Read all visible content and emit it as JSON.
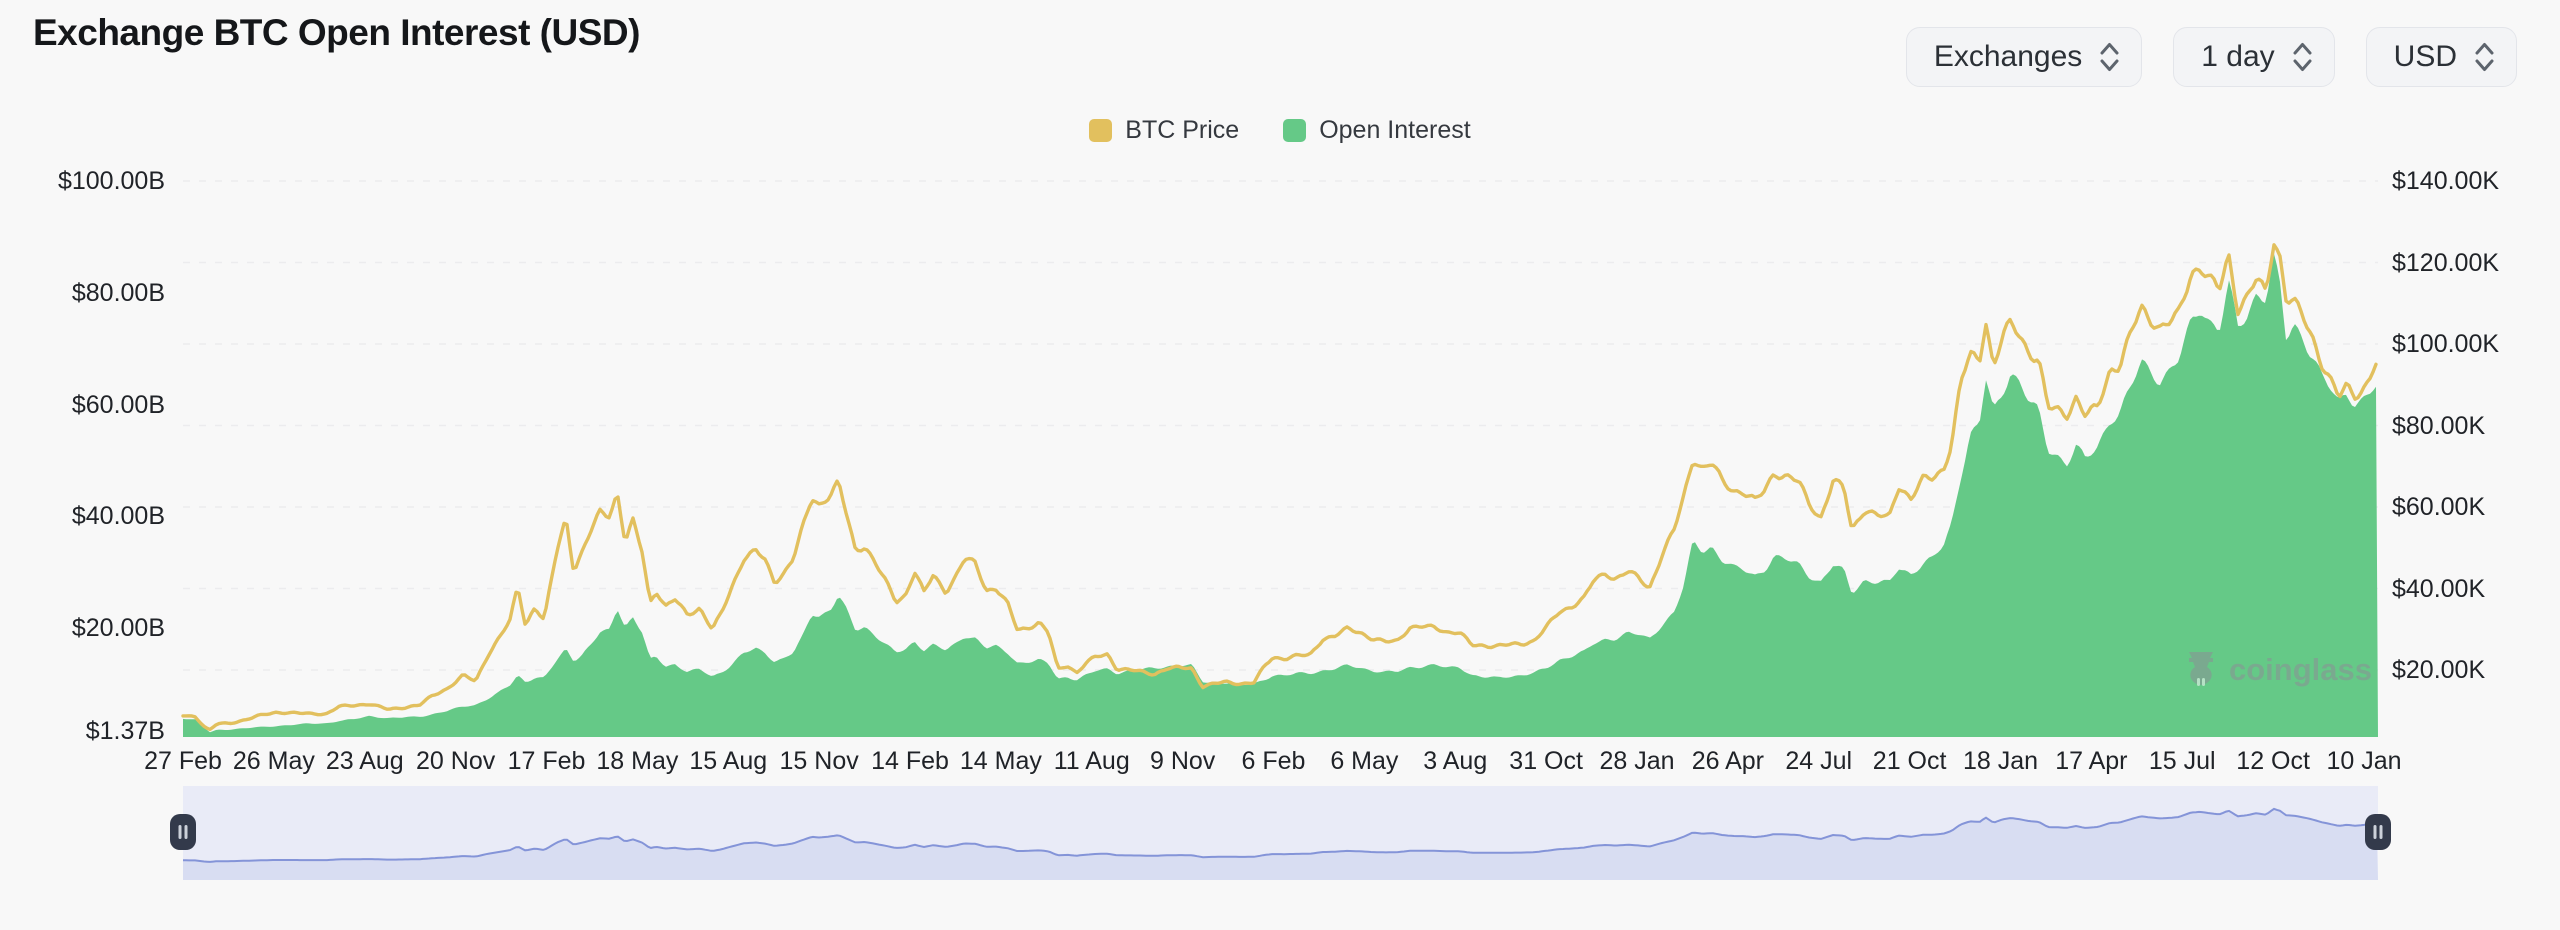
{
  "title": "Exchange BTC Open Interest (USD)",
  "controls": {
    "exchanges": "Exchanges",
    "interval": "1 day",
    "currency": "USD"
  },
  "legend": {
    "items": [
      {
        "label": "BTC Price",
        "color": "#e2c05e"
      },
      {
        "label": "Open Interest",
        "color": "#65c987"
      }
    ]
  },
  "watermark": "coinglass",
  "navigator": {
    "bg_color": "#e9ebf7",
    "fill_color": "#d8ddf2",
    "line_color": "#8494d8",
    "handle_color": "#333a4b",
    "handle_bar_color": "#ccd1da"
  },
  "chart_data": {
    "type": "area",
    "title": "Exchange BTC Open Interest (USD)",
    "legend_position": "top-center",
    "grid": "horizontal-dashed",
    "x_tick_labels": [
      "27 Feb",
      "26 May",
      "23 Aug",
      "20 Nov",
      "17 Feb",
      "18 May",
      "15 Aug",
      "15 Nov",
      "14 Feb",
      "14 May",
      "11 Aug",
      "9 Nov",
      "6 Feb",
      "6 May",
      "3 Aug",
      "31 Oct",
      "28 Jan",
      "26 Apr",
      "24 Jul",
      "21 Oct",
      "18 Jan",
      "17 Apr",
      "15 Jul",
      "12 Oct",
      "10 Jan"
    ],
    "x_unit": "months from first visible date (27 Feb, ~6-year daily range)",
    "x_span_months": 70.5,
    "y_axis_left": {
      "name": "Open Interest (USD)",
      "tick_labels": [
        "$100.00B",
        "$80.00B",
        "$60.00B",
        "$40.00B",
        "$20.00B"
      ],
      "tick_values_billions": [
        100,
        80,
        60,
        40,
        20
      ],
      "min_label": "$1.37B",
      "min_billions": 1.37,
      "approx_max_billions": 103
    },
    "y_axis_right": {
      "name": "BTC Price (USD)",
      "tick_labels": [
        "$140.00K",
        "$120.00K",
        "$100.00K",
        "$80.00K",
        "$60.00K",
        "$40.00K",
        "$20.00K"
      ],
      "tick_values_thousands": [
        140,
        120,
        100,
        80,
        60,
        40,
        20
      ],
      "approx_range_thousands": [
        4,
        144
      ]
    },
    "series": [
      {
        "name": "BTC Price",
        "type": "line",
        "axis": "right",
        "color": "#e2c05e",
        "unit": "USD thousands"
      },
      {
        "name": "Open Interest",
        "type": "area",
        "axis": "left",
        "color": "#65c987",
        "unit": "USD billions"
      }
    ],
    "points_format": "[months_from_start, btc_price_thousands_usd, open_interest_billions_usd]",
    "points": [
      [
        0,
        8.8,
        3.9
      ],
      [
        0.4,
        8.6,
        3.6
      ],
      [
        0.7,
        6.0,
        2.2
      ],
      [
        0.85,
        5.2,
        1.37
      ],
      [
        1.1,
        6.8,
        1.8
      ],
      [
        1.5,
        6.9,
        1.9
      ],
      [
        2,
        7.8,
        2.1
      ],
      [
        2.5,
        8.9,
        2.3
      ],
      [
        3,
        9.6,
        2.5
      ],
      [
        3.5,
        9.5,
        2.7
      ],
      [
        4,
        9.3,
        2.9
      ],
      [
        4.6,
        9.2,
        3.0
      ],
      [
        5,
        11.0,
        3.4
      ],
      [
        5.5,
        11.3,
        3.7
      ],
      [
        6,
        11.7,
        4.3
      ],
      [
        6.6,
        10.3,
        3.9
      ],
      [
        7,
        10.7,
        4.0
      ],
      [
        7.6,
        11.4,
        4.2
      ],
      [
        8,
        13.6,
        4.6
      ],
      [
        8.5,
        15.5,
        5.2
      ],
      [
        9,
        18.7,
        6.0
      ],
      [
        9.4,
        17.2,
        6.3
      ],
      [
        9.8,
        23.8,
        7.4
      ],
      [
        10.1,
        27.3,
        8.3
      ],
      [
        10.5,
        32.0,
        9.8
      ],
      [
        10.75,
        40.5,
        11.6
      ],
      [
        11,
        31.0,
        10.4
      ],
      [
        11.3,
        35.5,
        11.2
      ],
      [
        11.6,
        32.2,
        11.0
      ],
      [
        12,
        49.0,
        14.2
      ],
      [
        12.3,
        57.4,
        16.3
      ],
      [
        12.55,
        44.5,
        14.3
      ],
      [
        12.8,
        48.5,
        15.2
      ],
      [
        13.1,
        54.0,
        17.0
      ],
      [
        13.4,
        58.9,
        19.2
      ],
      [
        13.7,
        58.0,
        19.6
      ],
      [
        13.95,
        63.5,
        23.8
      ],
      [
        14.2,
        51.5,
        20.3
      ],
      [
        14.45,
        56.5,
        22.0
      ],
      [
        14.75,
        49.0,
        19.2
      ],
      [
        15,
        36.5,
        14.3
      ],
      [
        15.2,
        39.5,
        14.8
      ],
      [
        15.5,
        35.5,
        13.2
      ],
      [
        15.8,
        37.3,
        13.6
      ],
      [
        16.2,
        33.6,
        12.2
      ],
      [
        16.6,
        35.2,
        12.6
      ],
      [
        17,
        29.9,
        11.3
      ],
      [
        17.3,
        34.0,
        12.2
      ],
      [
        17.6,
        39.8,
        13.4
      ],
      [
        18,
        47.3,
        15.5
      ],
      [
        18.4,
        49.3,
        16.3
      ],
      [
        18.7,
        46.8,
        15.6
      ],
      [
        19,
        41.6,
        14.1
      ],
      [
        19.3,
        43.8,
        14.6
      ],
      [
        19.6,
        47.3,
        15.6
      ],
      [
        19.9,
        54.8,
        18.4
      ],
      [
        20.2,
        62.3,
        22.6
      ],
      [
        20.45,
        60.5,
        22.2
      ],
      [
        20.8,
        63.2,
        23.4
      ],
      [
        21.05,
        66.0,
        25.9
      ],
      [
        21.3,
        58.5,
        23.3
      ],
      [
        21.6,
        49.3,
        19.6
      ],
      [
        21.9,
        50.5,
        20.2
      ],
      [
        22.2,
        46.7,
        19.0
      ],
      [
        22.55,
        42.0,
        17.2
      ],
      [
        22.9,
        36.8,
        15.6
      ],
      [
        23.2,
        38.3,
        16.1
      ],
      [
        23.5,
        44.2,
        17.6
      ],
      [
        23.8,
        39.0,
        16.2
      ],
      [
        24.1,
        43.3,
        17.1
      ],
      [
        24.5,
        39.2,
        16.0
      ],
      [
        24.8,
        42.6,
        17.0
      ],
      [
        25.1,
        47.2,
        18.6
      ],
      [
        25.45,
        46.3,
        18.3
      ],
      [
        25.8,
        39.5,
        16.5
      ],
      [
        26.1,
        40.1,
        16.7
      ],
      [
        26.5,
        36.0,
        15.5
      ],
      [
        26.8,
        29.8,
        13.8
      ],
      [
        27.1,
        30.3,
        14.0
      ],
      [
        27.5,
        31.6,
        14.3
      ],
      [
        27.8,
        29.2,
        13.6
      ],
      [
        28.1,
        20.1,
        10.9
      ],
      [
        28.4,
        21.2,
        11.3
      ],
      [
        28.7,
        19.3,
        10.8
      ],
      [
        29,
        21.6,
        11.6
      ],
      [
        29.3,
        23.2,
        12.3
      ],
      [
        29.7,
        23.9,
        12.7
      ],
      [
        30,
        20.2,
        12.0
      ],
      [
        30.4,
        20.0,
        12.4
      ],
      [
        30.8,
        19.6,
        12.6
      ],
      [
        31.2,
        19.0,
        12.8
      ],
      [
        31.6,
        20.3,
        13.2
      ],
      [
        32,
        20.6,
        13.4
      ],
      [
        32.4,
        20.5,
        13.3
      ],
      [
        32.75,
        15.9,
        10.4
      ],
      [
        33.1,
        16.6,
        10.2
      ],
      [
        33.5,
        17.1,
        10.3
      ],
      [
        34,
        16.6,
        9.8
      ],
      [
        34.4,
        16.9,
        10.0
      ],
      [
        34.75,
        21.1,
        10.9
      ],
      [
        35,
        23.1,
        11.6
      ],
      [
        35.4,
        22.8,
        11.5
      ],
      [
        35.8,
        23.5,
        11.9
      ],
      [
        36.2,
        23.7,
        12.0
      ],
      [
        36.6,
        27.6,
        12.4
      ],
      [
        37,
        28.3,
        12.7
      ],
      [
        37.4,
        30.2,
        13.3
      ],
      [
        37.8,
        29.3,
        13.0
      ],
      [
        38.2,
        27.6,
        12.4
      ],
      [
        38.6,
        26.9,
        12.1
      ],
      [
        39,
        27.2,
        12.2
      ],
      [
        39.4,
        30.4,
        13.0
      ],
      [
        39.8,
        30.6,
        13.2
      ],
      [
        40.2,
        30.5,
        13.4
      ],
      [
        40.6,
        29.3,
        12.9
      ],
      [
        41,
        29.2,
        13.1
      ],
      [
        41.4,
        26.1,
        11.6
      ],
      [
        41.8,
        26.0,
        11.2
      ],
      [
        42.2,
        25.9,
        11.1
      ],
      [
        42.6,
        26.2,
        11.4
      ],
      [
        43,
        26.4,
        11.6
      ],
      [
        43.4,
        27.2,
        12.0
      ],
      [
        43.8,
        30.6,
        12.8
      ],
      [
        44.2,
        34.2,
        14.3
      ],
      [
        44.6,
        35.6,
        15.1
      ],
      [
        45,
        37.7,
        15.8
      ],
      [
        45.3,
        41.8,
        17.1
      ],
      [
        45.7,
        43.8,
        18.0
      ],
      [
        46,
        42.3,
        18.2
      ],
      [
        46.4,
        44.2,
        19.2
      ],
      [
        46.75,
        42.6,
        18.8
      ],
      [
        47.1,
        40.0,
        18.0
      ],
      [
        47.5,
        48.2,
        20.6
      ],
      [
        47.9,
        54.5,
        23.0
      ],
      [
        48.2,
        62.4,
        27.5
      ],
      [
        48.5,
        72.1,
        35.3
      ],
      [
        48.8,
        69.4,
        33.8
      ],
      [
        49.1,
        70.8,
        34.6
      ],
      [
        49.45,
        66.2,
        32.2
      ],
      [
        49.8,
        64.0,
        30.8
      ],
      [
        50.1,
        63.8,
        30.4
      ],
      [
        50.5,
        61.5,
        29.4
      ],
      [
        50.8,
        64.0,
        30.6
      ],
      [
        51.1,
        68.3,
        32.8
      ],
      [
        51.5,
        67.6,
        32.2
      ],
      [
        51.9,
        66.2,
        31.4
      ],
      [
        52.2,
        61.0,
        29.6
      ],
      [
        52.6,
        57.3,
        28.2
      ],
      [
        53,
        66.5,
        31.2
      ],
      [
        53.35,
        64.6,
        30.2
      ],
      [
        53.6,
        54.3,
        26.4
      ],
      [
        54,
        59.4,
        28.6
      ],
      [
        54.4,
        58.0,
        28.2
      ],
      [
        54.8,
        57.3,
        28.0
      ],
      [
        55.1,
        65.2,
        30.8
      ],
      [
        55.5,
        62.2,
        29.8
      ],
      [
        55.9,
        66.9,
        31.6
      ],
      [
        56.2,
        67.0,
        32.4
      ],
      [
        56.55,
        69.4,
        34.8
      ],
      [
        56.8,
        75.6,
        38.6
      ],
      [
        57.1,
        90.5,
        47.5
      ],
      [
        57.4,
        97.5,
        54.5
      ],
      [
        57.7,
        95.8,
        56.5
      ],
      [
        57.9,
        106.2,
        64.5
      ],
      [
        58.15,
        94.3,
        58.5
      ],
      [
        58.45,
        102.1,
        62.5
      ],
      [
        58.7,
        104.9,
        66.0
      ],
      [
        59,
        102.2,
        64.0
      ],
      [
        59.3,
        97.8,
        60.5
      ],
      [
        59.6,
        96.2,
        58.5
      ],
      [
        59.9,
        84.3,
        52.0
      ],
      [
        60.2,
        83.9,
        51.0
      ],
      [
        60.5,
        82.6,
        49.5
      ],
      [
        60.8,
        86.8,
        52.5
      ],
      [
        61.1,
        82.4,
        50.0
      ],
      [
        61.5,
        84.6,
        52.5
      ],
      [
        61.9,
        93.8,
        57.5
      ],
      [
        62.2,
        94.6,
        58.5
      ],
      [
        62.6,
        103.3,
        63.5
      ],
      [
        62.9,
        108.9,
        67.5
      ],
      [
        63.2,
        106.1,
        66.0
      ],
      [
        63.5,
        104.0,
        64.5
      ],
      [
        63.8,
        105.2,
        66.0
      ],
      [
        64.1,
        107.3,
        68.0
      ],
      [
        64.5,
        117.5,
        74.5
      ],
      [
        64.8,
        119.0,
        77.5
      ],
      [
        65.1,
        115.7,
        75.0
      ],
      [
        65.4,
        113.2,
        73.5
      ],
      [
        65.7,
        121.8,
        81.5
      ],
      [
        66,
        108.8,
        73.5
      ],
      [
        66.3,
        111.5,
        76.0
      ],
      [
        66.6,
        115.9,
        80.0
      ],
      [
        66.9,
        112.4,
        79.5
      ],
      [
        67.15,
        125.8,
        86.0
      ],
      [
        67.35,
        121.5,
        81.0
      ],
      [
        67.55,
        111.2,
        71.5
      ],
      [
        67.8,
        110.3,
        74.0
      ],
      [
        68.1,
        106.4,
        72.0
      ],
      [
        68.4,
        101.5,
        69.0
      ],
      [
        68.7,
        95.3,
        65.0
      ],
      [
        69,
        90.8,
        62.5
      ],
      [
        69.25,
        86.9,
        60.0
      ],
      [
        69.5,
        89.6,
        62.0
      ],
      [
        69.75,
        87.4,
        60.5
      ],
      [
        70,
        88.7,
        61.0
      ],
      [
        70.2,
        91.2,
        62.0
      ],
      [
        70.35,
        94.0,
        63.0
      ],
      [
        70.5,
        95.8,
        63.5
      ]
    ]
  }
}
